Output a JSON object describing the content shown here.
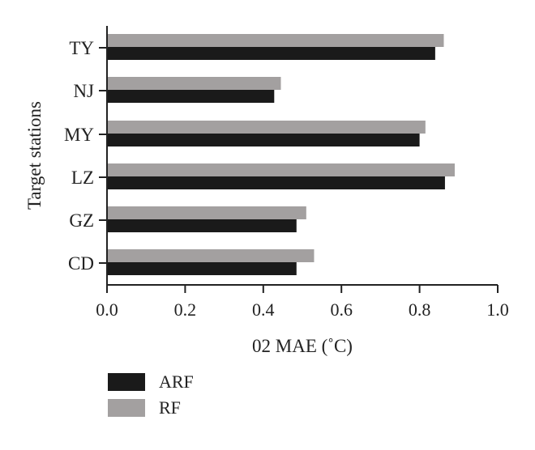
{
  "chart_data": {
    "type": "bar",
    "orientation": "horizontal",
    "title": "",
    "xlabel": "02 MAE (˚C)",
    "ylabel": "Target stations",
    "xlim": [
      0.0,
      1.0
    ],
    "xticks": [
      "0.0",
      "0.2",
      "0.4",
      "0.6",
      "0.8",
      "1.0"
    ],
    "categories": [
      "CD",
      "GZ",
      "LZ",
      "MY",
      "NJ",
      "TY"
    ],
    "series": [
      {
        "name": "ARF",
        "color": "#1a1a1a",
        "values": [
          0.485,
          0.485,
          0.865,
          0.8,
          0.428,
          0.84
        ]
      },
      {
        "name": "RF",
        "color": "#a3a0a0",
        "values": [
          0.53,
          0.51,
          0.89,
          0.815,
          0.445,
          0.862
        ]
      }
    ],
    "legend_position": "bottom-left",
    "grid": false
  }
}
